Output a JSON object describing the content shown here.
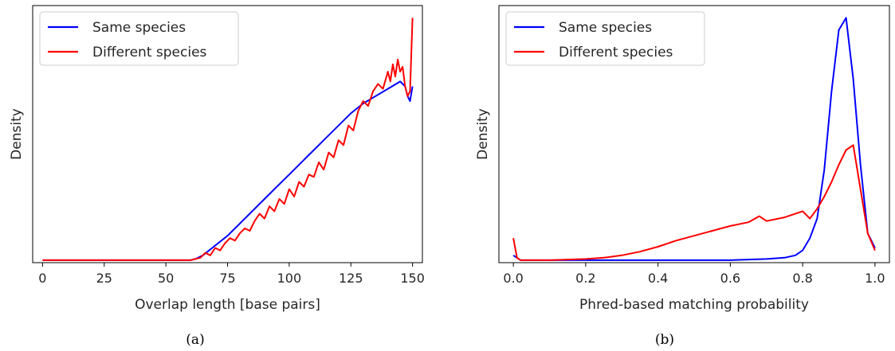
{
  "chart_data": [
    {
      "type": "line",
      "caption": "(a)",
      "xlabel": "Overlap length [base pairs]",
      "ylabel": "Density",
      "xlim": [
        -4,
        154
      ],
      "ylim": [
        0,
        1.05
      ],
      "xticks": [
        "0",
        "25",
        "50",
        "75",
        "100",
        "125",
        "150"
      ],
      "xtick_values": [
        0,
        25,
        50,
        75,
        100,
        125,
        150
      ],
      "legend_position": "top-left",
      "series": [
        {
          "name": "Same species",
          "color": "#0000ff",
          "x": [
            0,
            25,
            50,
            60,
            62,
            65,
            70,
            75,
            80,
            85,
            90,
            95,
            100,
            105,
            110,
            115,
            120,
            125,
            130,
            135,
            140,
            145,
            147,
            148,
            149,
            150
          ],
          "y": [
            0.01,
            0.01,
            0.01,
            0.01,
            0.015,
            0.03,
            0.07,
            0.11,
            0.16,
            0.21,
            0.26,
            0.31,
            0.36,
            0.41,
            0.46,
            0.51,
            0.56,
            0.61,
            0.65,
            0.68,
            0.71,
            0.74,
            0.72,
            0.68,
            0.66,
            0.72
          ]
        },
        {
          "name": "Different species",
          "color": "#ff0000",
          "x": [
            0,
            25,
            50,
            60,
            62,
            64,
            66,
            68,
            70,
            72,
            74,
            76,
            78,
            80,
            82,
            84,
            86,
            88,
            90,
            92,
            94,
            96,
            98,
            100,
            102,
            104,
            106,
            108,
            110,
            112,
            114,
            116,
            118,
            120,
            122,
            124,
            126,
            128,
            130,
            132,
            134,
            136,
            138,
            140,
            141,
            142,
            143,
            144,
            145,
            146,
            147,
            148,
            149,
            150
          ],
          "y": [
            0.01,
            0.01,
            0.01,
            0.01,
            0.015,
            0.02,
            0.04,
            0.03,
            0.06,
            0.05,
            0.08,
            0.1,
            0.09,
            0.12,
            0.14,
            0.13,
            0.17,
            0.2,
            0.18,
            0.23,
            0.21,
            0.26,
            0.24,
            0.3,
            0.27,
            0.33,
            0.31,
            0.36,
            0.35,
            0.41,
            0.38,
            0.45,
            0.43,
            0.5,
            0.48,
            0.56,
            0.54,
            0.62,
            0.66,
            0.64,
            0.7,
            0.73,
            0.71,
            0.78,
            0.74,
            0.81,
            0.76,
            0.83,
            0.78,
            0.8,
            0.72,
            0.68,
            0.7,
            1.0
          ]
        }
      ]
    },
    {
      "type": "line",
      "caption": "(b)",
      "xlabel": "Phred-based matching probability",
      "ylabel": "Density",
      "xlim": [
        -0.04,
        1.04
      ],
      "ylim": [
        0,
        1.05
      ],
      "xticks": [
        "0.0",
        "0.2",
        "0.4",
        "0.6",
        "0.8",
        "1.0"
      ],
      "xtick_values": [
        0,
        0.2,
        0.4,
        0.6,
        0.8,
        1.0
      ],
      "legend_position": "top-left",
      "series": [
        {
          "name": "Same species",
          "color": "#0000ff",
          "x": [
            0,
            0.02,
            0.1,
            0.2,
            0.3,
            0.4,
            0.5,
            0.6,
            0.7,
            0.75,
            0.78,
            0.8,
            0.82,
            0.84,
            0.86,
            0.88,
            0.9,
            0.92,
            0.94,
            0.96,
            0.98,
            1.0
          ],
          "y": [
            0.03,
            0.01,
            0.01,
            0.01,
            0.01,
            0.01,
            0.01,
            0.01,
            0.015,
            0.02,
            0.03,
            0.05,
            0.1,
            0.18,
            0.38,
            0.7,
            0.95,
            1.0,
            0.75,
            0.4,
            0.12,
            0.06
          ]
        },
        {
          "name": "Different species",
          "color": "#ff0000",
          "x": [
            0,
            0.01,
            0.02,
            0.05,
            0.1,
            0.2,
            0.25,
            0.3,
            0.35,
            0.4,
            0.45,
            0.5,
            0.55,
            0.6,
            0.65,
            0.68,
            0.7,
            0.75,
            0.8,
            0.82,
            0.84,
            0.86,
            0.88,
            0.9,
            0.92,
            0.94,
            0.96,
            0.98,
            1.0
          ],
          "y": [
            0.1,
            0.02,
            0.01,
            0.01,
            0.01,
            0.015,
            0.02,
            0.03,
            0.045,
            0.065,
            0.09,
            0.11,
            0.13,
            0.15,
            0.165,
            0.19,
            0.17,
            0.185,
            0.21,
            0.18,
            0.22,
            0.27,
            0.33,
            0.4,
            0.46,
            0.48,
            0.3,
            0.12,
            0.05
          ]
        }
      ]
    }
  ]
}
